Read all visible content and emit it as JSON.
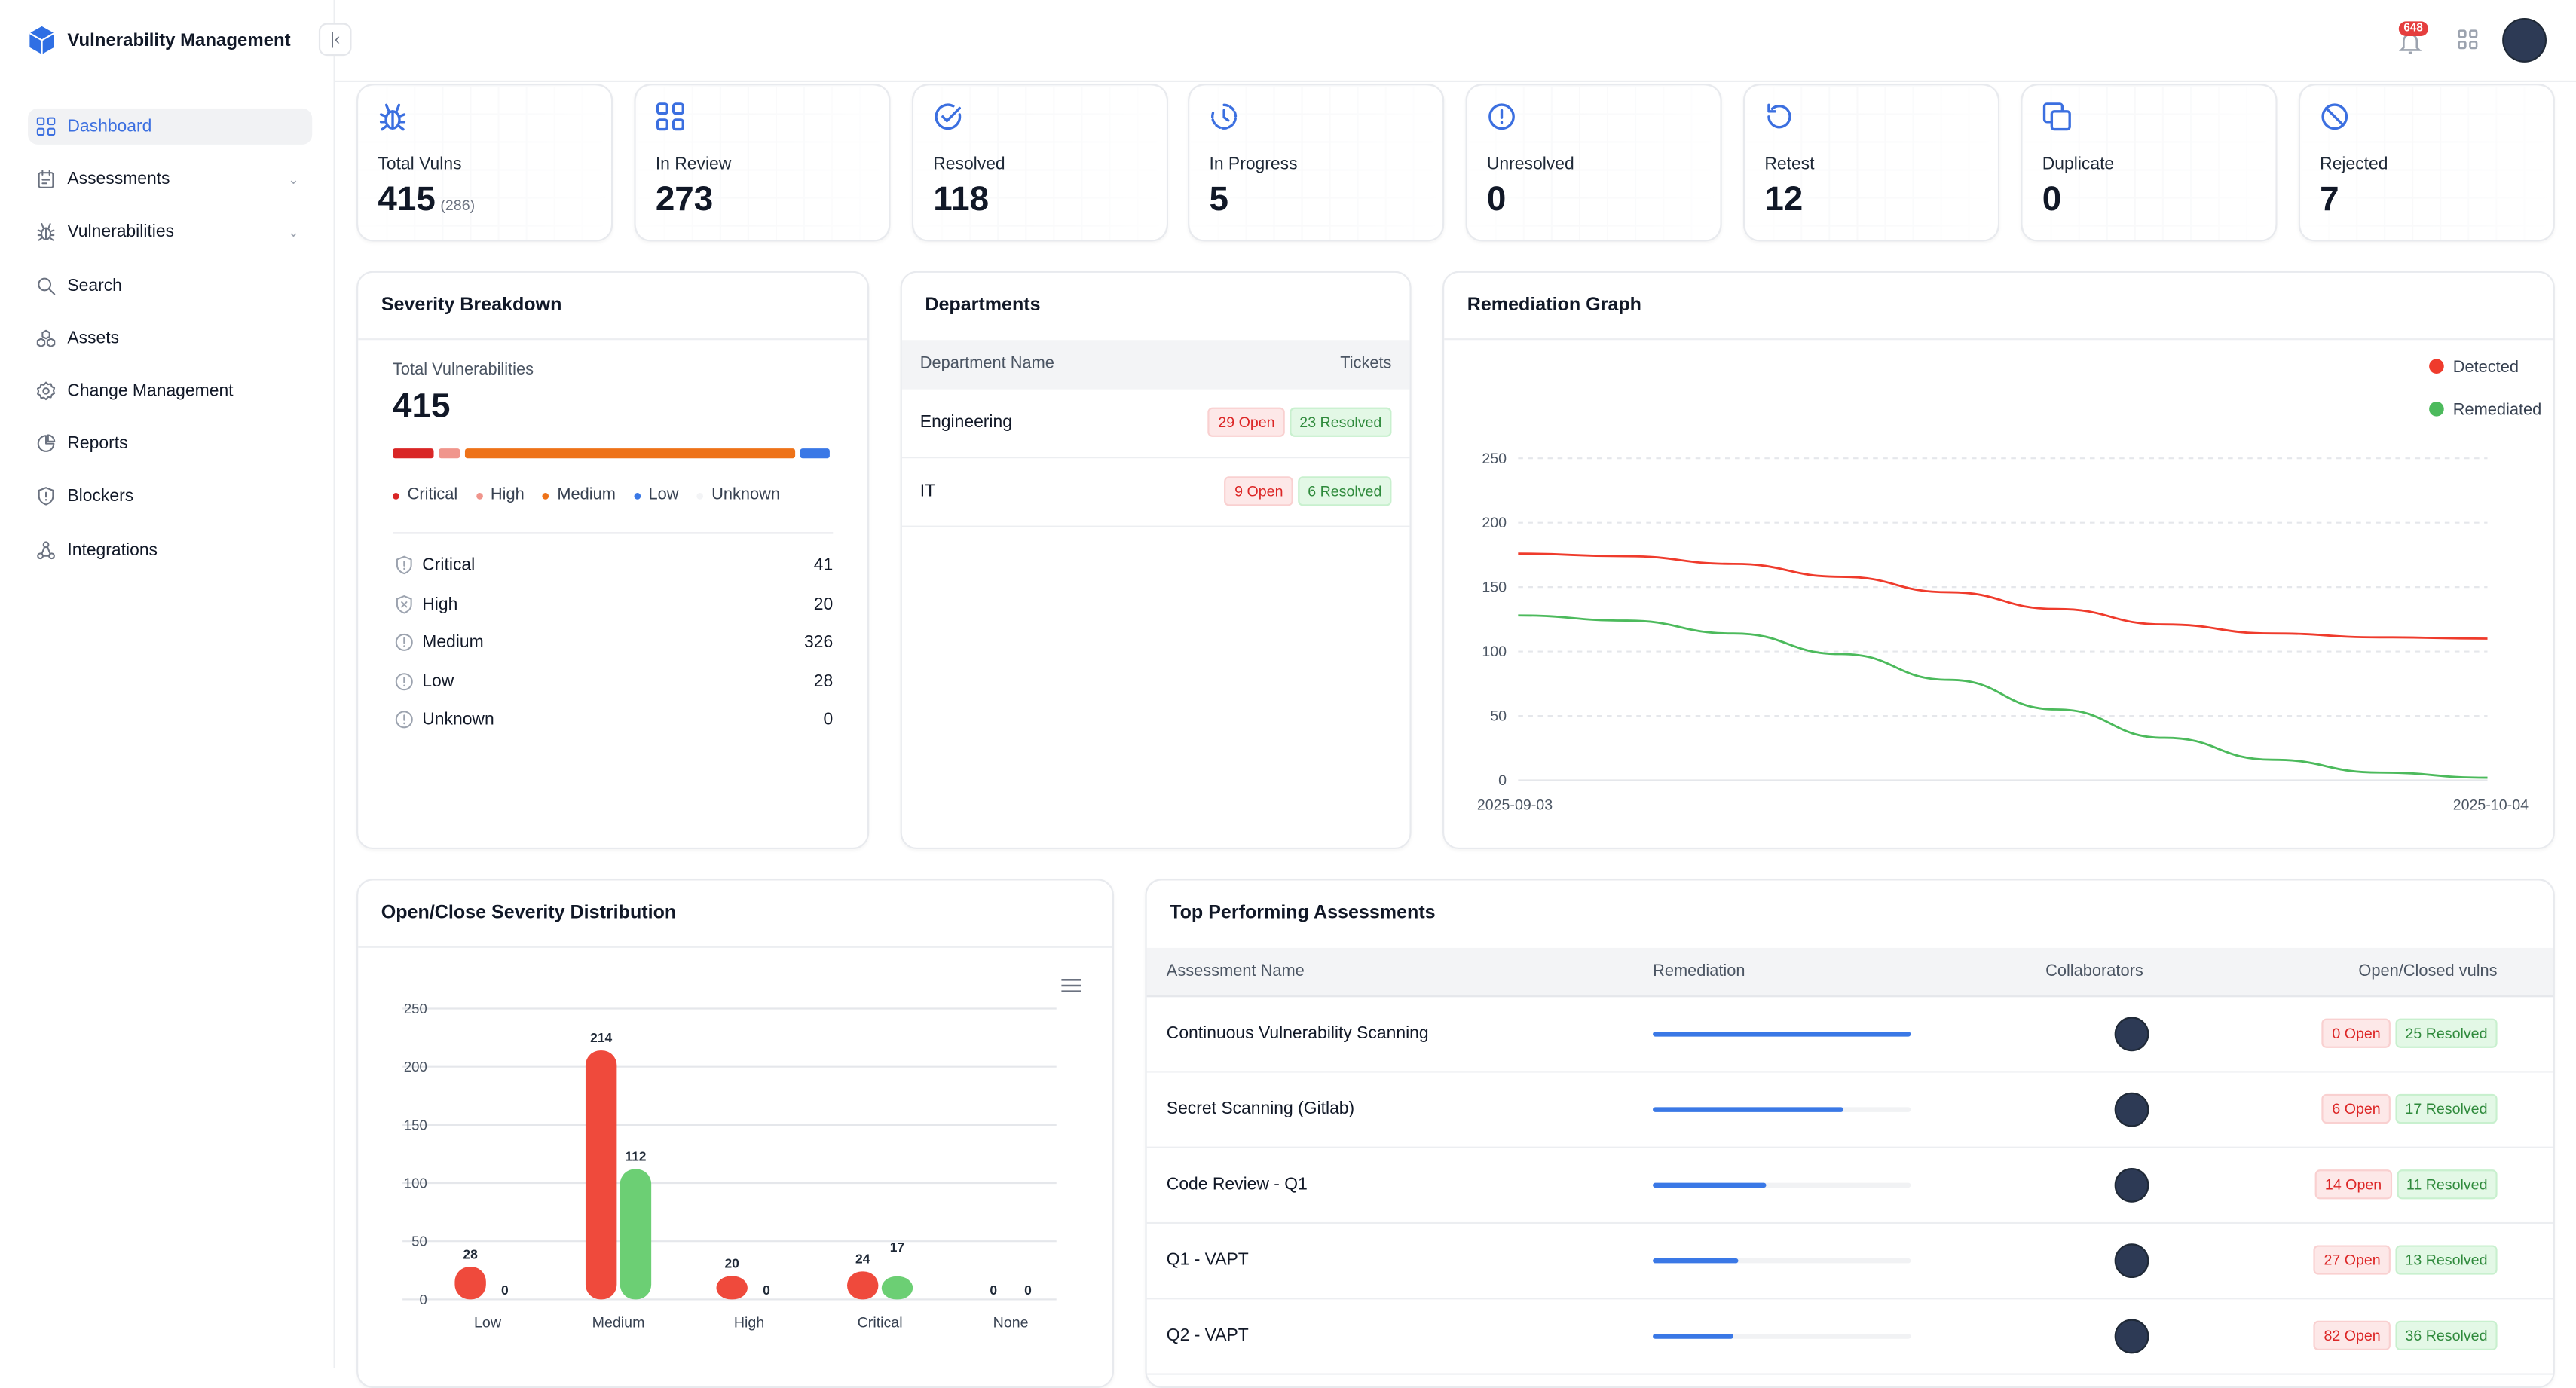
{
  "app": {
    "title": "Vulnerability Management",
    "logo_icon": "cube-icon",
    "collapse_icon": "collapse-left-icon"
  },
  "sidebar": {
    "items": [
      {
        "label": "Dashboard",
        "icon": "grid-icon",
        "active": true
      },
      {
        "label": "Assessments",
        "icon": "clipboard-icon",
        "chevron": true
      },
      {
        "label": "Vulnerabilities",
        "icon": "bug-icon",
        "chevron": true
      },
      {
        "label": "Search",
        "icon": "search-icon"
      },
      {
        "label": "Assets",
        "icon": "assets-icon"
      },
      {
        "label": "Change Management",
        "icon": "gear-icon"
      },
      {
        "label": "Reports",
        "icon": "pie-chart-icon"
      },
      {
        "label": "Blockers",
        "icon": "shield-icon"
      },
      {
        "label": "Integrations",
        "icon": "integrations-icon"
      }
    ]
  },
  "header": {
    "notifications": "648",
    "accent": "#3b6fe0",
    "badge_color": "#e53e3e"
  },
  "stats": [
    {
      "label": "Total Vulns",
      "value": "415",
      "sub": "(286)",
      "icon": "bug-icon"
    },
    {
      "label": "In Review",
      "value": "273",
      "icon": "grid-icon"
    },
    {
      "label": "Resolved",
      "value": "118",
      "icon": "check-circle-icon"
    },
    {
      "label": "In Progress",
      "value": "5",
      "icon": "clock-progress-icon"
    },
    {
      "label": "Unresolved",
      "value": "0",
      "icon": "alert-circle-icon"
    },
    {
      "label": "Retest",
      "value": "12",
      "icon": "refresh-icon"
    },
    {
      "label": "Duplicate",
      "value": "0",
      "icon": "copy-icon"
    },
    {
      "label": "Rejected",
      "value": "7",
      "icon": "ban-icon"
    }
  ],
  "severity": {
    "title": "Severity Breakdown",
    "total_label": "Total Vulnerabilities",
    "total": "415",
    "legend": [
      {
        "label": "Critical",
        "color": "#d92626"
      },
      {
        "label": "High",
        "color": "#f0958c"
      },
      {
        "label": "Medium",
        "color": "#ee7218"
      },
      {
        "label": "Low",
        "color": "#3a78e6"
      },
      {
        "label": "Unknown",
        "color": "#f3f4f6"
      }
    ],
    "rows": [
      {
        "label": "Critical",
        "value": "41",
        "icon": "shield-alert-icon"
      },
      {
        "label": "High",
        "value": "20",
        "icon": "shield-x-icon"
      },
      {
        "label": "Medium",
        "value": "326",
        "icon": "alert-circle-icon"
      },
      {
        "label": "Low",
        "value": "28",
        "icon": "alert-circle-icon"
      },
      {
        "label": "Unknown",
        "value": "0",
        "icon": "alert-circle-icon"
      }
    ]
  },
  "departments": {
    "title": "Departments",
    "col_name": "Department Name",
    "col_tickets": "Tickets",
    "rows": [
      {
        "name": "Engineering",
        "open": "29 Open",
        "resolved": "23 Resolved"
      },
      {
        "name": "IT",
        "open": "9 Open",
        "resolved": "6 Resolved"
      }
    ]
  },
  "remediation_graph": {
    "title": "Remediation Graph"
  },
  "distribution": {
    "title": "Open/Close Severity Distribution",
    "menu_icon": "hamburger-menu-icon"
  },
  "top_assessments": {
    "title": "Top Performing Assessments",
    "columns": [
      "Assessment Name",
      "Remediation",
      "Collaborators",
      "Open/Closed vulns"
    ],
    "rows": [
      {
        "name": "Continuous Vulnerability Scanning",
        "remediation": 1.0,
        "open": "0 Open",
        "resolved": "25 Resolved"
      },
      {
        "name": "Secret Scanning (Gitlab)",
        "remediation": 0.74,
        "open": "6 Open",
        "resolved": "17 Resolved"
      },
      {
        "name": "Code Review - Q1",
        "remediation": 0.44,
        "open": "14 Open",
        "resolved": "11 Resolved"
      },
      {
        "name": "Q1 - VAPT",
        "remediation": 0.33,
        "open": "27 Open",
        "resolved": "13 Resolved"
      },
      {
        "name": "Q2 - VAPT",
        "remediation": 0.31,
        "open": "82 Open",
        "resolved": "36 Resolved"
      }
    ]
  },
  "chart_data": [
    {
      "type": "line",
      "title": "Remediation Graph",
      "x_ticks": [
        "2025-09-03",
        "2025-10-04"
      ],
      "ylim": [
        0,
        250
      ],
      "y_ticks": [
        "0",
        "50",
        "100",
        "150",
        "200",
        "250"
      ],
      "grid": true,
      "legend": "top-right",
      "series": [
        {
          "name": "Detected",
          "color": "#ef3b2c",
          "values": [
            176,
            174,
            168,
            158,
            146,
            133,
            121,
            114,
            111,
            110
          ]
        },
        {
          "name": "Remediated",
          "color": "#4cba5c",
          "values": [
            128,
            124,
            114,
            98,
            78,
            55,
            33,
            16,
            6,
            2
          ]
        }
      ]
    },
    {
      "type": "bar",
      "title": "Open/Close Severity Distribution",
      "categories": [
        "Low",
        "Medium",
        "High",
        "Critical",
        "None"
      ],
      "ylim": [
        0,
        250
      ],
      "y_ticks": [
        "0",
        "50",
        "100",
        "150",
        "200",
        "250"
      ],
      "grid": true,
      "series": [
        {
          "color": "#ef4a3c",
          "values": [
            28,
            214,
            20,
            24,
            0
          ]
        },
        {
          "color": "#6ccf74",
          "values": [
            0,
            112,
            0,
            17,
            0
          ]
        }
      ]
    }
  ]
}
